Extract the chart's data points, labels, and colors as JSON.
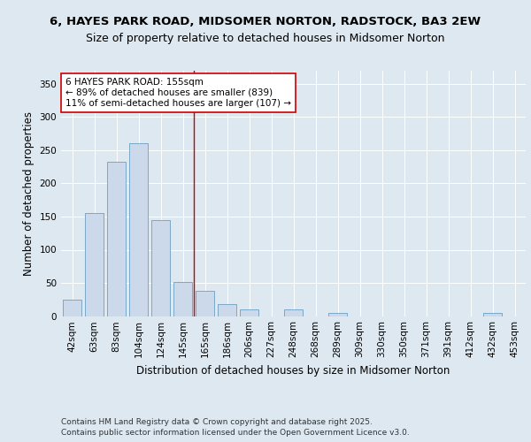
{
  "title1": "6, HAYES PARK ROAD, MIDSOMER NORTON, RADSTOCK, BA3 2EW",
  "title2": "Size of property relative to detached houses in Midsomer Norton",
  "xlabel": "Distribution of detached houses by size in Midsomer Norton",
  "ylabel": "Number of detached properties",
  "bar_labels": [
    "42sqm",
    "63sqm",
    "83sqm",
    "104sqm",
    "124sqm",
    "145sqm",
    "165sqm",
    "186sqm",
    "206sqm",
    "227sqm",
    "248sqm",
    "268sqm",
    "289sqm",
    "309sqm",
    "330sqm",
    "350sqm",
    "371sqm",
    "391sqm",
    "412sqm",
    "432sqm",
    "453sqm"
  ],
  "bar_values": [
    25,
    155,
    233,
    260,
    145,
    52,
    38,
    18,
    10,
    0,
    10,
    0,
    5,
    0,
    0,
    0,
    0,
    0,
    0,
    5,
    0
  ],
  "bar_color": "#ccd9ea",
  "bar_edge_color": "#6a9fc0",
  "vline_x": 5.5,
  "vline_color": "#cc0000",
  "annotation_title": "6 HAYES PARK ROAD: 155sqm",
  "annotation_line1": "← 89% of detached houses are smaller (839)",
  "annotation_line2": "11% of semi-detached houses are larger (107) →",
  "annotation_box_facecolor": "#ffffff",
  "annotation_box_edgecolor": "#cc0000",
  "ylim": [
    0,
    370
  ],
  "yticks": [
    0,
    50,
    100,
    150,
    200,
    250,
    300,
    350
  ],
  "background_color": "#dde8f0",
  "plot_bg_color": "#dde8f0",
  "footer1": "Contains HM Land Registry data © Crown copyright and database right 2025.",
  "footer2": "Contains public sector information licensed under the Open Government Licence v3.0.",
  "title_fontsize": 9.5,
  "subtitle_fontsize": 9,
  "axis_label_fontsize": 8.5,
  "tick_fontsize": 7.5,
  "annotation_fontsize": 7.5,
  "footer_fontsize": 6.5
}
